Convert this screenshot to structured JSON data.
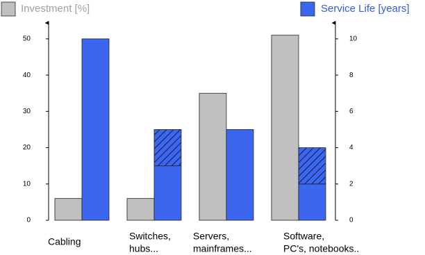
{
  "chart_data": {
    "type": "bar",
    "categories": [
      [
        "Cabling"
      ],
      [
        "Switches,",
        "hubs..."
      ],
      [
        "Servers,",
        "mainframes..."
      ],
      [
        "Software,",
        "PC's, notebooks.."
      ]
    ],
    "series": [
      {
        "name": "Investment [%]",
        "color": "#c0c0c0",
        "values": [
          6,
          6,
          35,
          51
        ]
      },
      {
        "name": "Service Life [years]",
        "color": "#3a66f0",
        "axis": "y2",
        "values": [
          10,
          3,
          5,
          2
        ],
        "hatched_values": [
          null,
          2,
          null,
          2
        ]
      }
    ],
    "ylim": [
      0,
      54
    ],
    "yticks": [
      0,
      10,
      20,
      30,
      40,
      50
    ],
    "y2lim": [
      0,
      10.8
    ],
    "y2ticks": [
      0,
      2,
      4,
      6,
      8,
      10
    ],
    "legend_colors": {
      "Investment [%]": "#a0a0a0",
      "Service Life [years]": "#2f5de8"
    }
  }
}
